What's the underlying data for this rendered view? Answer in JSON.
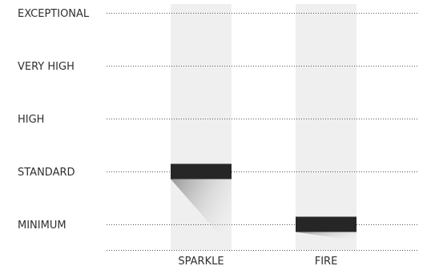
{
  "chart_data": {
    "type": "bar",
    "levels": [
      "MINIMUM",
      "STANDARD",
      "HIGH",
      "VERY HIGH",
      "EXCEPTIONAL"
    ],
    "categories": [
      "SPARKLE",
      "FIRE"
    ],
    "values": [
      2,
      1
    ],
    "ylim": [
      0,
      5
    ],
    "grid": true,
    "colors": {
      "track": "#efefef",
      "marker": "#262626",
      "grid": "#555555",
      "text": "#2f2f2f"
    }
  }
}
